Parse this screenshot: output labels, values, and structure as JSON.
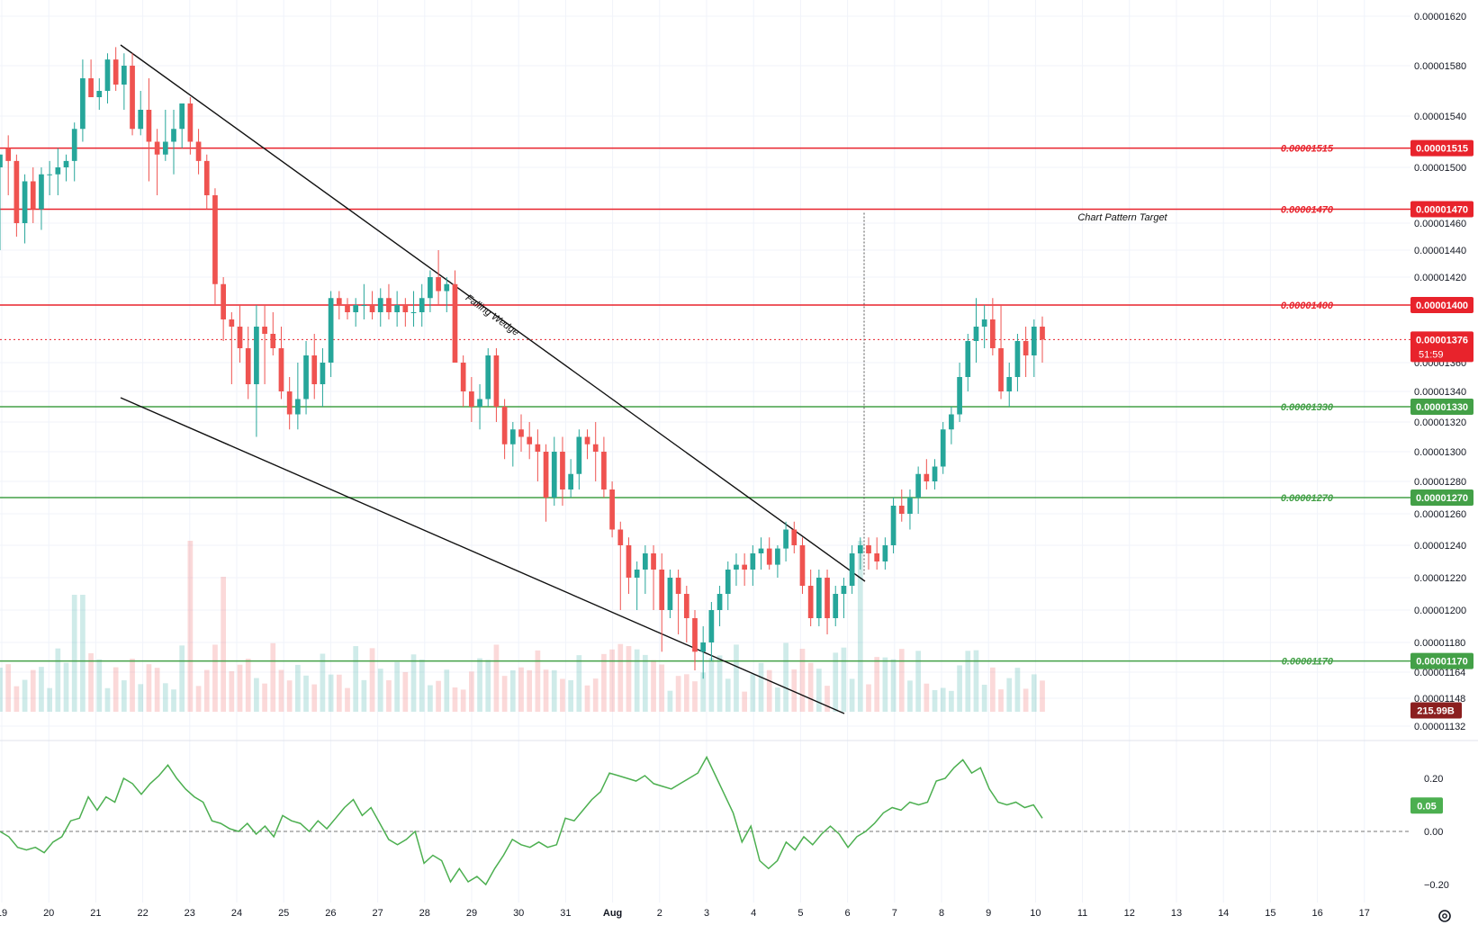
{
  "chart_data": {
    "type": "candlestick",
    "price_axis": {
      "ticks": [
        "0.00001620",
        "0.00001580",
        "0.00001540",
        "0.00001500",
        "0.00001460",
        "0.00001440",
        "0.00001420",
        "0.00001360",
        "0.00001340",
        "0.00001320",
        "0.00001300",
        "0.00001280",
        "0.00001260",
        "0.00001240",
        "0.00001220",
        "0.00001200",
        "0.00001180",
        "0.00001164",
        "0.00001148",
        "0.00001132"
      ],
      "tick_values": [
        1.62e-05,
        1.58e-05,
        1.54e-05,
        1.5e-05,
        1.46e-05,
        1.44e-05,
        1.42e-05,
        1.36e-05,
        1.34e-05,
        1.32e-05,
        1.3e-05,
        1.28e-05,
        1.26e-05,
        1.24e-05,
        1.22e-05,
        1.2e-05,
        1.18e-05,
        1.164e-05,
        1.148e-05,
        1.132e-05
      ]
    },
    "time_axis": {
      "labels": [
        "19",
        "20",
        "21",
        "22",
        "23",
        "24",
        "25",
        "26",
        "27",
        "28",
        "29",
        "30",
        "31",
        "Aug",
        "2",
        "3",
        "4",
        "5",
        "6",
        "7",
        "8",
        "9",
        "10",
        "11",
        "12",
        "13",
        "14",
        "15",
        "16",
        "17"
      ],
      "bold_label": "Aug"
    },
    "horizontal_levels": [
      {
        "value": 1.515e-05,
        "label": "0.00001515",
        "badge": "0.00001515",
        "color": "#e8232c",
        "type": "resistance"
      },
      {
        "value": 1.47e-05,
        "label": "0.00001470",
        "badge": "0.00001470",
        "color": "#e8232c",
        "type": "resistance"
      },
      {
        "value": 1.4e-05,
        "label": "0.00001400",
        "badge": "0.00001400",
        "color": "#e8232c",
        "type": "resistance"
      },
      {
        "value": 1.33e-05,
        "label": "0.00001330",
        "badge": "0.00001330",
        "color": "#43a047",
        "type": "support"
      },
      {
        "value": 1.27e-05,
        "label": "0.00001270",
        "badge": "0.00001270",
        "color": "#43a047",
        "type": "support"
      },
      {
        "value": 1.17e-05,
        "label": "0.00001170",
        "badge": "0.00001170",
        "color": "#43a047",
        "type": "support"
      }
    ],
    "current_price": {
      "value": 1.376e-05,
      "label": "0.00001376",
      "countdown": "51:59",
      "color": "#e8232c"
    },
    "annotations": {
      "pattern_label": "Falling Wedge",
      "target_label": "Chart Pattern Target"
    },
    "volume": {
      "badge": "215.99B",
      "badge_color": "#8b1f1f"
    },
    "oscillator": {
      "ticks": [
        "0.20",
        "0.00",
        "−0.20"
      ],
      "tick_values": [
        0.2,
        0.0,
        -0.2
      ],
      "current_badge": "0.05",
      "line_color": "#4caf50",
      "values": [
        0.0,
        -0.02,
        -0.06,
        -0.07,
        -0.06,
        -0.08,
        -0.04,
        -0.02,
        0.04,
        0.05,
        0.13,
        0.08,
        0.13,
        0.11,
        0.2,
        0.18,
        0.14,
        0.18,
        0.21,
        0.25,
        0.2,
        0.16,
        0.13,
        0.11,
        0.04,
        0.03,
        0.01,
        0.0,
        0.03,
        -0.01,
        0.02,
        -0.02,
        0.06,
        0.04,
        0.03,
        0.0,
        0.04,
        0.01,
        0.05,
        0.09,
        0.12,
        0.06,
        0.09,
        0.03,
        -0.03,
        -0.05,
        -0.03,
        0.0,
        -0.12,
        -0.09,
        -0.11,
        -0.19,
        -0.14,
        -0.19,
        -0.17,
        -0.2,
        -0.14,
        -0.09,
        -0.03,
        -0.05,
        -0.06,
        -0.04,
        -0.06,
        -0.05,
        0.05,
        0.04,
        0.08,
        0.12,
        0.15,
        0.22,
        0.21,
        0.2,
        0.19,
        0.21,
        0.18,
        0.17,
        0.16,
        0.18,
        0.2,
        0.22,
        0.28,
        0.21,
        0.14,
        0.07,
        -0.04,
        0.02,
        -0.11,
        -0.14,
        -0.11,
        -0.04,
        -0.07,
        -0.02,
        -0.05,
        -0.01,
        0.02,
        -0.01,
        -0.06,
        -0.02,
        0.0,
        0.03,
        0.07,
        0.09,
        0.08,
        0.11,
        0.1,
        0.11,
        0.19,
        0.2,
        0.24,
        0.27,
        0.22,
        0.24,
        0.16,
        0.11,
        0.1,
        0.11,
        0.09,
        0.1,
        0.05
      ]
    }
  }
}
